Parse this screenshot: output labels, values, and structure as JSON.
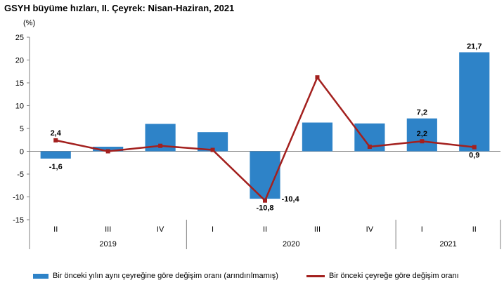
{
  "title": "GSYH büyüme hızları, II. Çeyrek: Nisan-Haziran, 2021",
  "colors": {
    "bar": "#2E83C8",
    "line": "#A3201E",
    "axis": "#7F7F7F"
  },
  "chart_data": {
    "type": "bar+line",
    "y_unit_label": "(%)",
    "ylim": [
      -15,
      25
    ],
    "yticks": [
      -15,
      -10,
      -5,
      0,
      5,
      10,
      15,
      20,
      25
    ],
    "categories": [
      "II",
      "III",
      "IV",
      "I",
      "II",
      "III",
      "IV",
      "I",
      "II"
    ],
    "years": [
      {
        "label": "2019",
        "start": 0,
        "end": 2
      },
      {
        "label": "2020",
        "start": 3,
        "end": 6
      },
      {
        "label": "2021",
        "start": 7,
        "end": 8
      }
    ],
    "series": [
      {
        "name": "Bir önceki yılın aynı çeyreğine göre değişim oranı (arındırılmamış)",
        "type": "bar",
        "values": [
          -1.6,
          1.0,
          6.0,
          4.2,
          -10.4,
          6.3,
          6.1,
          7.2,
          21.7
        ],
        "labels": [
          "-1,6",
          null,
          null,
          null,
          "-10,4",
          null,
          null,
          "7,2",
          "21,7"
        ]
      },
      {
        "name": "Bir önceki çeyreğe göre değişim oranı",
        "type": "line",
        "values": [
          2.4,
          0.0,
          1.2,
          0.3,
          -10.8,
          16.2,
          1.0,
          2.2,
          0.9
        ],
        "labels": [
          "2,4",
          null,
          null,
          null,
          "-10,8",
          null,
          null,
          "2,2",
          "0,9"
        ]
      }
    ]
  }
}
